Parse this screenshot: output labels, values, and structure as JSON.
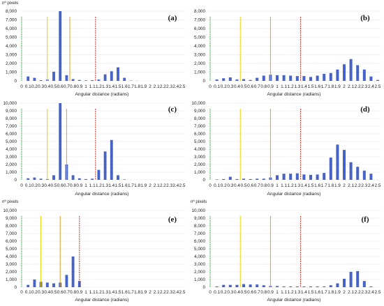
{
  "chart_data": [
    {
      "panel": "(a)",
      "type": "bar",
      "ylabel": "nº pixels",
      "xlabel": "Angular distance (radians)",
      "ylim": [
        0,
        8000
      ],
      "yticks": [
        "0",
        "1,000",
        "2,000",
        "3,000",
        "4,000",
        "5,000",
        "6,000",
        "7,000",
        "8,000"
      ],
      "categories": [
        "0",
        "0.1",
        "0.2",
        "0.3",
        "0.4",
        "0.5",
        "0.6",
        "0.7",
        "0.8",
        "0.9",
        "1",
        "1.1",
        "1.2",
        "1.3",
        "1.4",
        "1.5",
        "1.6",
        "1.7",
        "1.8",
        "1.9",
        "2",
        "2.1",
        "2.2",
        "2.3",
        "2.4",
        "2.5"
      ],
      "values": [
        0,
        500,
        350,
        80,
        150,
        1050,
        8200,
        650,
        200,
        100,
        60,
        80,
        150,
        750,
        1100,
        1550,
        350,
        30,
        10,
        0,
        0,
        0,
        0,
        0,
        0,
        0
      ],
      "lines": [
        {
          "color": "#2e9e3e",
          "x": 0
        },
        {
          "color": "#e8d300",
          "x": 0.4
        },
        {
          "color": "#e0a020",
          "x": 0.75
        },
        {
          "color": "#c0281c",
          "x": 1.15
        }
      ],
      "grid": true
    },
    {
      "panel": "(b)",
      "type": "bar",
      "ylabel": "",
      "xlabel": "Angular distance (radians)",
      "ylim": [
        0,
        8000
      ],
      "yticks": [
        "0",
        "1,000",
        "2,000",
        "3,000",
        "4,000",
        "5,000",
        "6,000",
        "7,000",
        "8,000"
      ],
      "categories": [
        "0",
        "0.1",
        "0.2",
        "0.3",
        "0.4",
        "0.5",
        "0.6",
        "0.7",
        "0.8",
        "0.9",
        "1",
        "1.1",
        "1.2",
        "1.3",
        "1.4",
        "1.5",
        "1.6",
        "1.7",
        "1.8",
        "1.9",
        "2",
        "2.1",
        "2.2",
        "2.3",
        "2.4",
        "2.5"
      ],
      "values": [
        0,
        150,
        300,
        400,
        150,
        200,
        100,
        350,
        600,
        700,
        650,
        650,
        600,
        550,
        550,
        450,
        600,
        800,
        900,
        1300,
        1900,
        2500,
        1800,
        1300,
        500,
        100
      ],
      "lines": [
        {
          "color": "#2e9e3e",
          "x": 0
        },
        {
          "color": "#e8d300",
          "x": 0.45
        },
        {
          "color": "#e0a020",
          "x": 0.9
        },
        {
          "color": "#c0281c",
          "x": 1.35
        }
      ],
      "grid": true
    },
    {
      "panel": "(c)",
      "type": "bar",
      "ylabel": "",
      "xlabel": "Angular distance (radians)",
      "ylim": [
        0,
        10000
      ],
      "yticks": [
        "0",
        "1,000",
        "2,000",
        "3,000",
        "4,000",
        "5,000",
        "6,000",
        "7,000",
        "8,000",
        "9,000",
        "10,000"
      ],
      "categories": [
        "0",
        "0.1",
        "0.2",
        "0.3",
        "0.4",
        "0.5",
        "0.6",
        "0.7",
        "0.8",
        "0.9",
        "1",
        "1.1",
        "1.2",
        "1.3",
        "1.4",
        "1.5",
        "1.6",
        "1.7",
        "1.8",
        "1.9",
        "2",
        "2.1",
        "2.2",
        "2.3",
        "2.4",
        "2.5"
      ],
      "values": [
        0,
        200,
        300,
        150,
        100,
        600,
        10000,
        2000,
        600,
        200,
        100,
        150,
        1300,
        3700,
        5200,
        600,
        50,
        0,
        0,
        0,
        0,
        0,
        0,
        0,
        0,
        0
      ],
      "lines": [
        {
          "color": "#2e9e3e",
          "x": 0
        },
        {
          "color": "#e8d300",
          "x": 0.4
        },
        {
          "color": "#e0a020",
          "x": 0.7
        },
        {
          "color": "#c0281c",
          "x": 1.15
        }
      ],
      "grid": true
    },
    {
      "panel": "(d)",
      "type": "bar",
      "ylabel": "",
      "xlabel": "Angular distance (radians)",
      "ylim": [
        0,
        10000
      ],
      "yticks": [
        "0",
        "1,000",
        "2,000",
        "3,000",
        "4,000",
        "5,000",
        "6,000",
        "7,000",
        "8,000",
        "9,000",
        "10,000"
      ],
      "categories": [
        "0",
        "0.1",
        "0.2",
        "0.3",
        "0.4",
        "0.5",
        "0.6",
        "0.7",
        "0.8",
        "0.9",
        "1",
        "1.1",
        "1.2",
        "1.3",
        "1.4",
        "1.5",
        "1.6",
        "1.7",
        "1.8",
        "1.9",
        "2",
        "2.1",
        "2.2",
        "2.3",
        "2.4",
        "2.5"
      ],
      "values": [
        0,
        50,
        100,
        400,
        100,
        150,
        100,
        150,
        150,
        300,
        600,
        800,
        800,
        850,
        700,
        650,
        700,
        900,
        2900,
        4600,
        3900,
        2300,
        1700,
        1200,
        800,
        0
      ],
      "lines": [
        {
          "color": "#2e9e3e",
          "x": 0
        },
        {
          "color": "#e8d300",
          "x": 0.45
        },
        {
          "color": "#e0a020",
          "x": 0.9
        },
        {
          "color": "#c0281c",
          "x": 1.35
        }
      ],
      "grid": true
    },
    {
      "panel": "(e)",
      "type": "bar",
      "ylabel": "nº pixels",
      "xlabel": "Angular distance (radians)",
      "ylim": [
        0,
        10000
      ],
      "yticks": [
        "0",
        "1,000",
        "2,000",
        "3,000",
        "4,000",
        "5,000",
        "6,000",
        "7,000",
        "8,000",
        "9,000",
        "10,000"
      ],
      "categories": [
        "0",
        "0.1",
        "0.2",
        "0.3",
        "0.4",
        "0.5",
        "0.6",
        "0.7",
        "0.8",
        "0.9",
        "1",
        "1.1",
        "1.2",
        "1.3",
        "1.4",
        "1.5",
        "1.6",
        "1.7",
        "1.8",
        "1.9",
        "2",
        "2.1",
        "2.2",
        "2.3",
        "2.4",
        "2.5"
      ],
      "values": [
        0,
        300,
        1000,
        700,
        600,
        500,
        600,
        1600,
        4000,
        800,
        0,
        0,
        0,
        0,
        0,
        0,
        0,
        0,
        0,
        0,
        0,
        0,
        0,
        0,
        0,
        0
      ],
      "lines": [
        {
          "color": "#2e9e3e",
          "x": 0
        },
        {
          "color": "#e8d300",
          "x": 0.3
        },
        {
          "color": "#e0a020",
          "x": 0.6
        },
        {
          "color": "#c0281c",
          "x": 0.9
        }
      ],
      "grid": true
    },
    {
      "panel": "(f)",
      "type": "bar",
      "ylabel": "nº pixels",
      "xlabel": "Angular distance (radians)",
      "ylim": [
        0,
        10000
      ],
      "yticks": [
        "0",
        "1,000",
        "2,000",
        "3,000",
        "4,000",
        "5,000",
        "6,000",
        "7,000",
        "8,000",
        "9,000",
        "10,000"
      ],
      "categories": [
        "0",
        "0.1",
        "0.2",
        "0.3",
        "0.4",
        "0.5",
        "0.6",
        "0.7",
        "0.8",
        "0.9",
        "1",
        "1.1",
        "1.2",
        "1.3",
        "1.4",
        "1.5",
        "1.6",
        "1.7",
        "1.8",
        "1.9",
        "2",
        "2.1",
        "2.2",
        "2.3",
        "2.4",
        "2.5"
      ],
      "values": [
        0,
        100,
        300,
        300,
        300,
        400,
        350,
        350,
        250,
        150,
        150,
        100,
        100,
        100,
        100,
        100,
        100,
        100,
        250,
        500,
        1100,
        2000,
        2100,
        800,
        100,
        0
      ],
      "lines": [
        {
          "color": "#2e9e3e",
          "x": 0
        },
        {
          "color": "#e8d300",
          "x": 0.45
        },
        {
          "color": "#e0a020",
          "x": 0.9
        },
        {
          "color": "#c0281c",
          "x": 1.35
        }
      ],
      "grid": true
    }
  ]
}
